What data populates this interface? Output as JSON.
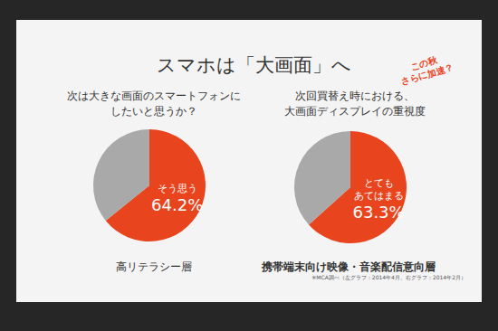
{
  "title": "スマホは「大画面」へ",
  "annotation": "この秋\nさらに加速？",
  "note": "※MCA調べ（左グラフ：2014年4月、右グラフ：2014年2月）",
  "chart_data": [
    {
      "type": "pie",
      "title": "次は大きな画面のスマートフォンに\nしたいと思うか？",
      "caption": "高リテラシー層",
      "categories": [
        "そう思う",
        null
      ],
      "values": [
        64.2,
        35.8
      ],
      "value_labels": [
        "64.2%",
        null
      ],
      "colors": [
        "#e8441e",
        "#a9a9a9"
      ],
      "data_labels": true
    },
    {
      "type": "pie",
      "title": "次回買替え時における、\n大画面ディスプレイの重視度",
      "caption": "携帯端末向け映像・音楽配信意向層",
      "categories": [
        "とても\nあてはまる",
        null
      ],
      "values": [
        63.3,
        36.7
      ],
      "value_labels": [
        "63.3%",
        null
      ],
      "colors": [
        "#e8441e",
        "#a9a9a9"
      ],
      "data_labels": true
    }
  ]
}
